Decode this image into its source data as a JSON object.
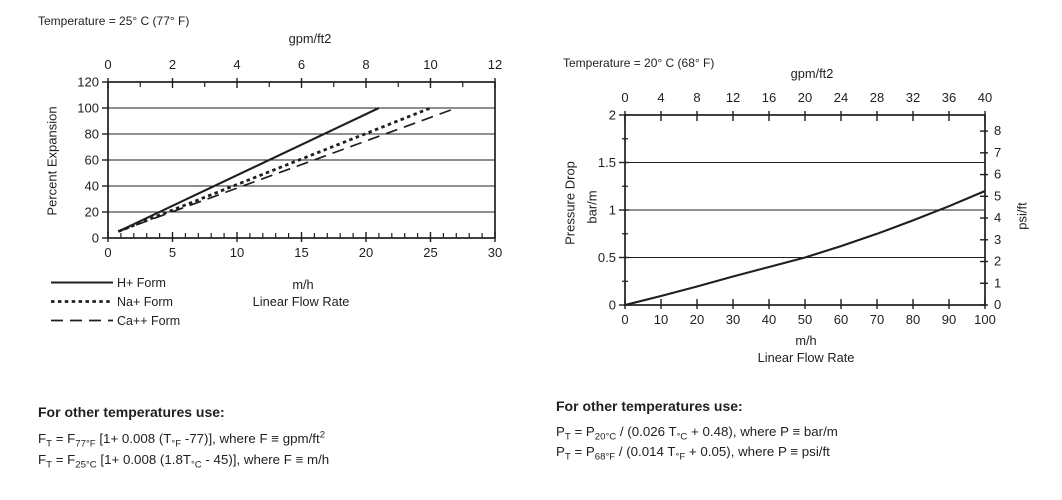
{
  "page": {
    "bg": "#ffffff",
    "ink": "#1f1f1f"
  },
  "left_panel": {
    "title": "Temperature = 25° C (77° F)",
    "top_axis_unit": "gpm/ft2",
    "y_axis_label": "Percent Expansion",
    "x_axis_unit": "m/h",
    "x_axis_label": "Linear Flow Rate",
    "notes_heading": "For other temperatures use:",
    "formulas": [
      {
        "runs": [
          {
            "t": "F"
          },
          {
            "s": "T"
          },
          {
            "t": " = F"
          },
          {
            "s": "77°F"
          },
          {
            "t": " [1+ 0.008 (T"
          },
          {
            "s": "°F"
          },
          {
            "t": " -77)], where F ≡ gpm/ft"
          },
          {
            "p": "2"
          }
        ]
      },
      {
        "runs": [
          {
            "t": "F"
          },
          {
            "s": "T"
          },
          {
            "t": " = F"
          },
          {
            "s": "25°C"
          },
          {
            "t": " [1+ 0.008 (1.8T"
          },
          {
            "s": "°C"
          },
          {
            "t": " - 45)], where F ≡ m/h"
          }
        ]
      }
    ]
  },
  "right_panel": {
    "title": "Temperature = 20° C (68° F)",
    "top_axis_unit": "gpm/ft2",
    "y_axis_label_line1": "Pressure Drop",
    "y_axis_label_line2": "bar/m",
    "right_axis_label": "psi/ft",
    "x_axis_unit": "m/h",
    "x_axis_label": "Linear Flow Rate",
    "notes_heading": "For other temperatures use:",
    "formulas": [
      {
        "runs": [
          {
            "t": "P"
          },
          {
            "s": "T"
          },
          {
            "t": " = P"
          },
          {
            "s": "20°C"
          },
          {
            "t": " / (0.026 T"
          },
          {
            "s": "°C"
          },
          {
            "t": " + 0.48), where P ≡ bar/m"
          }
        ]
      },
      {
        "runs": [
          {
            "t": "P"
          },
          {
            "s": "T"
          },
          {
            "t": " = P"
          },
          {
            "s": "68°F"
          },
          {
            "t": " / (0.014 T"
          },
          {
            "s": "°F"
          },
          {
            "t": " + 0.05), where P ≡ psi/ft"
          }
        ]
      }
    ]
  },
  "chart_data": [
    {
      "type": "line",
      "title": "Temperature = 25° C (77° F)",
      "x_bottom_axis": {
        "label": "Linear Flow Rate (m/h)",
        "range": [
          0,
          30
        ],
        "major_ticks": [
          0,
          5,
          10,
          15,
          20,
          25,
          30
        ],
        "minor_step": 1
      },
      "x_top_axis": {
        "label": "gpm/ft2",
        "range": [
          0,
          12
        ],
        "major_ticks": [
          0,
          2,
          4,
          6,
          8,
          10,
          12
        ],
        "minor_step": 1
      },
      "y_axis": {
        "label": "Percent Expansion",
        "range": [
          0,
          120
        ],
        "ticks": [
          0,
          20,
          40,
          60,
          80,
          100,
          120
        ],
        "gridlines": [
          20,
          40,
          60,
          80,
          100
        ]
      },
      "legend_position": "bottom-left",
      "series": [
        {
          "name": "H+ Form",
          "line_style": "solid",
          "points": [
            [
              0.8,
              5
            ],
            [
              21,
              100
            ]
          ]
        },
        {
          "name": "Na+ Form",
          "line_style": "dotted",
          "points": [
            [
              0.8,
              5
            ],
            [
              25,
              100
            ]
          ]
        },
        {
          "name": "Ca++ Form",
          "line_style": "long-dash",
          "points": [
            [
              0.8,
              5
            ],
            [
              27,
              100
            ]
          ]
        }
      ]
    },
    {
      "type": "line",
      "title": "Temperature = 20° C (68° F)",
      "x_bottom_axis": {
        "label": "Linear Flow Rate (m/h)",
        "range": [
          0,
          100
        ],
        "major_ticks": [
          0,
          10,
          20,
          30,
          40,
          50,
          60,
          70,
          80,
          90,
          100
        ]
      },
      "x_top_axis": {
        "label": "gpm/ft2",
        "range": [
          0,
          40
        ],
        "major_ticks": [
          0,
          4,
          8,
          12,
          16,
          20,
          24,
          28,
          32,
          36,
          40
        ]
      },
      "y_axis": {
        "label": "Pressure Drop (bar/m)",
        "range": [
          0,
          2
        ],
        "ticks": [
          0,
          0.5,
          1,
          1.5,
          2
        ],
        "minor_step": 0.25,
        "gridlines": [
          0.5,
          1,
          1.5
        ]
      },
      "y_right_axis": {
        "label": "psi/ft",
        "range": [
          0,
          8.74
        ],
        "ticks": [
          0,
          1,
          2,
          3,
          4,
          5,
          6,
          7,
          8
        ]
      },
      "series": [
        {
          "name": "Pressure Drop",
          "line_style": "solid",
          "points": [
            [
              0,
              0
            ],
            [
              10,
              0.095
            ],
            [
              20,
              0.195
            ],
            [
              30,
              0.3
            ],
            [
              40,
              0.4
            ],
            [
              50,
              0.5
            ],
            [
              60,
              0.62
            ],
            [
              70,
              0.75
            ],
            [
              80,
              0.89
            ],
            [
              90,
              1.04
            ],
            [
              100,
              1.2
            ]
          ]
        }
      ]
    }
  ]
}
